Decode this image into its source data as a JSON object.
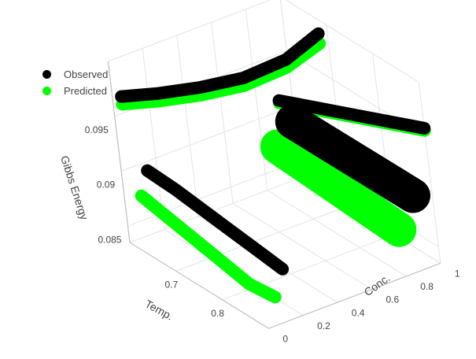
{
  "chart_data": {
    "type": "scatter3d",
    "axes": {
      "x": {
        "label": "Temp.",
        "range": [
          0.6,
          0.9
        ],
        "ticks": [
          "0.7",
          "0.8"
        ]
      },
      "y": {
        "label": "Conc.",
        "range": [
          0,
          1
        ],
        "ticks": [
          "0",
          "0.2",
          "0.4",
          "0.6",
          "0.8",
          "1"
        ]
      },
      "z": {
        "label": "Gibbs Energy",
        "range": [
          0.0835,
          0.1
        ],
        "ticks": [
          "0.085",
          "0.09",
          "0.095"
        ]
      }
    },
    "grid": true,
    "legend_position": "top-left",
    "series": [
      {
        "name": "Observed",
        "color": "#000000",
        "traces": [
          {
            "note": "top-left arc",
            "x": [
              0.6,
              0.62,
              0.64,
              0.66,
              0.68,
              0.7
            ],
            "y": [
              0.05,
              0.2,
              0.4,
              0.6,
              0.8,
              0.95
            ],
            "z": [
              0.0965,
              0.0964,
              0.0963,
              0.0965,
              0.0975,
              0.0995
            ]
          },
          {
            "note": "left diagonal band",
            "x": [
              0.64,
              0.68,
              0.72,
              0.76,
              0.8,
              0.84
            ],
            "y": [
              0.05,
              0.1,
              0.14,
              0.18,
              0.22,
              0.26
            ],
            "z": [
              0.0908,
              0.0898,
              0.0888,
              0.0878,
              0.0868,
              0.0858
            ]
          },
          {
            "note": "block",
            "x": [
              0.72,
              0.76,
              0.8,
              0.84,
              0.88
            ],
            "y": [
              0.7,
              0.76,
              0.82,
              0.88,
              0.94
            ],
            "z": [
              0.0935,
              0.0925,
              0.0915,
              0.0905,
              0.0895
            ]
          },
          {
            "note": "right band",
            "x": [
              0.82,
              0.84,
              0.86,
              0.88,
              0.9
            ],
            "y": [
              0.4,
              0.55,
              0.7,
              0.85,
              1.0
            ],
            "z": [
              0.0998,
              0.0988,
              0.0978,
              0.0968,
              0.0958
            ]
          }
        ]
      },
      {
        "name": "Predicted",
        "color": "#00ff00",
        "traces": [
          {
            "note": "top-left arc",
            "x": [
              0.6,
              0.62,
              0.64,
              0.66,
              0.68,
              0.7
            ],
            "y": [
              0.05,
              0.2,
              0.4,
              0.6,
              0.8,
              0.95
            ],
            "z": [
              0.0958,
              0.0957,
              0.0956,
              0.0958,
              0.0968,
              0.0986
            ]
          },
          {
            "note": "left diagonal band",
            "x": [
              0.64,
              0.68,
              0.72,
              0.76,
              0.8,
              0.84
            ],
            "y": [
              0.0,
              0.04,
              0.08,
              0.12,
              0.16,
              0.2
            ],
            "z": [
              0.0888,
              0.0876,
              0.0864,
              0.0852,
              0.084,
              0.0836
            ]
          },
          {
            "note": "block",
            "x": [
              0.72,
              0.76,
              0.8,
              0.84,
              0.88
            ],
            "y": [
              0.6,
              0.66,
              0.72,
              0.78,
              0.84
            ],
            "z": [
              0.0918,
              0.0906,
              0.0894,
              0.0882,
              0.087
            ]
          },
          {
            "note": "right band",
            "x": [
              0.82,
              0.84,
              0.86,
              0.88,
              0.9
            ],
            "y": [
              0.4,
              0.55,
              0.7,
              0.85,
              1.0
            ],
            "z": [
              0.0996,
              0.0986,
              0.0976,
              0.0966,
              0.0956
            ]
          }
        ]
      }
    ]
  }
}
